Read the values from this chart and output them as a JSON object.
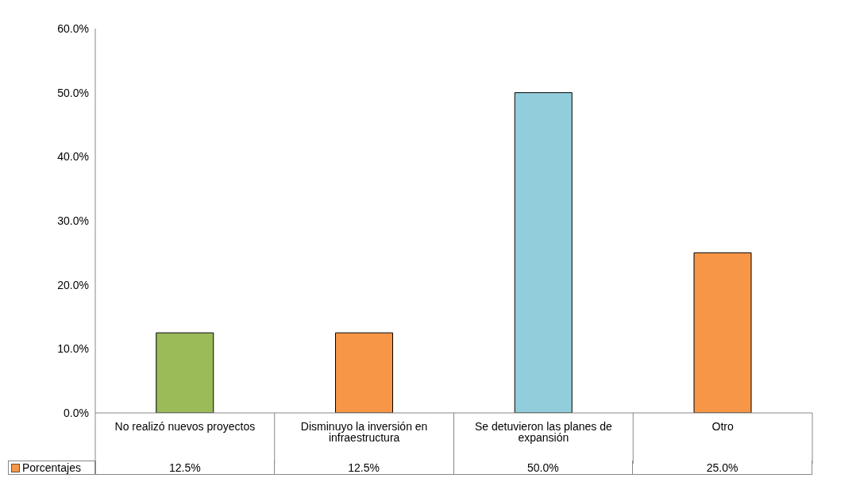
{
  "chart_data": {
    "type": "bar",
    "categories": [
      "No realizó nuevos proyectos",
      "Disminuyo la inversión en infraestructura",
      "Se detuvieron las planes de expansión",
      "Otro"
    ],
    "series": [
      {
        "name": "Porcentajes",
        "color": "#f79646",
        "colors": [
          "#9bbb59",
          "#f79646",
          "#92cddc",
          "#f79646"
        ],
        "values": [
          12.5,
          12.5,
          50.0,
          25.0
        ],
        "value_labels": [
          "12.5%",
          "12.5%",
          "50.0%",
          "25.0%"
        ]
      }
    ],
    "ylim": [
      0,
      60
    ],
    "yticks": [
      {
        "value": 0,
        "label": "0.0%"
      },
      {
        "value": 10,
        "label": "10.0%"
      },
      {
        "value": 20,
        "label": "20.0%"
      },
      {
        "value": 30,
        "label": "30.0%"
      },
      {
        "value": 40,
        "label": "40.0%"
      },
      {
        "value": 50,
        "label": "50.0%"
      },
      {
        "value": 60,
        "label": "60.0%"
      }
    ],
    "legend": "bottom"
  }
}
